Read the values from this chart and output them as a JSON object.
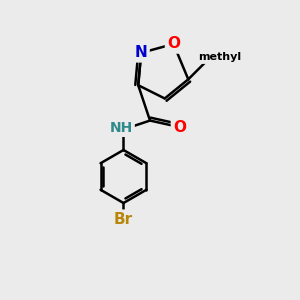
{
  "background_color": "#ebebeb",
  "bond_color": "#000000",
  "bond_width": 1.8,
  "atom_colors": {
    "O": "#ff0000",
    "N": "#0000cd",
    "Br": "#b8860b",
    "NH_color": "#2e8b8b",
    "C": "#000000"
  },
  "font_size_atom": 11,
  "font_size_methyl": 10,
  "font_size_NH": 10
}
